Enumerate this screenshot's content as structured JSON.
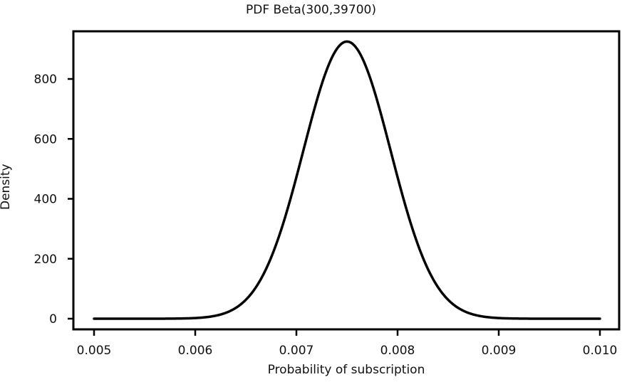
{
  "chart_data": {
    "type": "line",
    "title": "PDF Beta(300,39700)",
    "xlabel": "Probability of subscription",
    "ylabel": "Density",
    "xlim": [
      0.005,
      0.01
    ],
    "ylim": [
      0,
      925
    ],
    "x_ticks": [
      "0.005",
      "0.006",
      "0.007",
      "0.008",
      "0.009",
      "0.010"
    ],
    "y_ticks": [
      "0",
      "200",
      "400",
      "600",
      "800"
    ],
    "grid": false,
    "legend": null,
    "distribution": {
      "name": "Beta",
      "alpha": 300,
      "beta": 39700
    },
    "series": [
      {
        "name": "Beta(300,39700) PDF",
        "color": "#000000",
        "x": [
          0.005,
          0.0055,
          0.006,
          0.0062,
          0.0064,
          0.0066,
          0.0068,
          0.007,
          0.0072,
          0.0074,
          0.0075,
          0.0076,
          0.0078,
          0.008,
          0.0082,
          0.0084,
          0.0086,
          0.0088,
          0.009,
          0.0095,
          0.01
        ],
        "values": [
          0,
          0.1,
          2,
          9,
          36,
          105,
          245,
          470,
          728,
          900,
          925,
          901,
          735,
          497,
          280,
          134,
          55,
          20,
          6,
          0.2,
          0
        ]
      }
    ]
  }
}
